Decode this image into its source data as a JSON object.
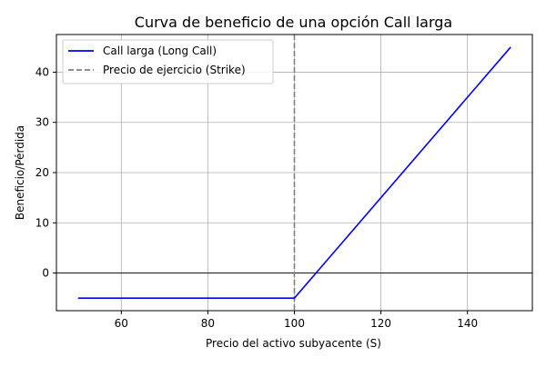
{
  "chart_data": {
    "type": "line",
    "title": "Curva de beneficio de una opción Call larga",
    "xlabel": "Precio del activo subyacente (S)",
    "ylabel": "Beneficio/Pérdida",
    "xlim": [
      45,
      155
    ],
    "ylim": [
      -7.5,
      47.5
    ],
    "xticks": [
      60,
      80,
      100,
      120,
      140
    ],
    "yticks": [
      0,
      10,
      20,
      30,
      40
    ],
    "grid": true,
    "legend_position": "top-left",
    "series": [
      {
        "name": "Call larga (Long Call)",
        "color": "#0000ff",
        "style": "solid",
        "x": [
          50,
          100,
          150
        ],
        "y": [
          -5,
          -5,
          45
        ]
      }
    ],
    "vlines": [
      {
        "name": "Precio de ejercicio (Strike)",
        "x": 100,
        "color": "#808080",
        "style": "dashed"
      }
    ],
    "hlines": [
      {
        "y": 0,
        "color": "#000000",
        "style": "solid"
      }
    ]
  }
}
